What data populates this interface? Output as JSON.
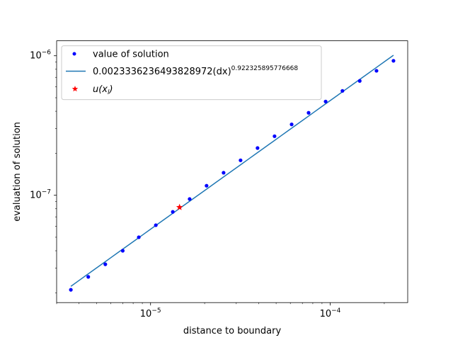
{
  "chart_data": {
    "type": "scatter",
    "xscale": "log",
    "yscale": "log",
    "xlabel": "distance to boundary",
    "ylabel": "evaluation of solution",
    "xlim": [
      3e-06,
      0.00027
    ],
    "ylim": [
      1.7e-08,
      1.28e-06
    ],
    "xticks": [
      {
        "value": 1e-05,
        "base": "10",
        "exp": "−5"
      },
      {
        "value": 0.0001,
        "base": "10",
        "exp": "−4"
      }
    ],
    "yticks": [
      {
        "value": 1e-07,
        "base": "10",
        "exp": "−7"
      },
      {
        "value": 1e-06,
        "base": "10",
        "exp": "−6"
      }
    ],
    "legend": {
      "position": "upper left",
      "entries": [
        {
          "label": "value of solution",
          "marker": "dot",
          "color": "#0000ff"
        },
        {
          "label": "0.0023336236493828972(dx)",
          "label_exp": "0.922325895776668",
          "marker": "line",
          "color": "#1f77b4"
        },
        {
          "label": "u(x",
          "label_sub": "l",
          "label_end": ")",
          "marker": "star",
          "color": "#ff0000"
        }
      ]
    },
    "series": [
      {
        "name": "value of solution",
        "kind": "scatter",
        "color": "#0000ff",
        "x": [
          3.6e-06,
          4.5e-06,
          5.6e-06,
          7e-06,
          8.6e-06,
          1.07e-05,
          1.33e-05,
          1.65e-05,
          2.05e-05,
          2.55e-05,
          3.17e-05,
          3.94e-05,
          4.9e-05,
          6.1e-05,
          7.58e-05,
          9.43e-05,
          0.000117,
          0.000146,
          0.000181,
          0.000225
        ],
        "y": [
          2.1e-08,
          2.6e-08,
          3.2e-08,
          4e-08,
          5e-08,
          6.1e-08,
          7.6e-08,
          9.4e-08,
          1.17e-07,
          1.45e-07,
          1.78e-07,
          2.18e-07,
          2.65e-07,
          3.22e-07,
          3.9e-07,
          4.7e-07,
          5.6e-07,
          6.6e-07,
          7.8e-07,
          9.2e-07
        ]
      },
      {
        "name": "0.0023336236493828972(dx)^0.922325895776668",
        "kind": "line",
        "color": "#1f77b4",
        "coef": 0.0023336236493828972,
        "exponent": 0.922325895776668,
        "x_range": [
          3.6e-06,
          0.000225
        ]
      },
      {
        "name": "u(x_l)",
        "kind": "star",
        "color": "#ff0000",
        "x": [
          1.45e-05
        ],
        "y": [
          8.2e-08
        ]
      }
    ]
  }
}
